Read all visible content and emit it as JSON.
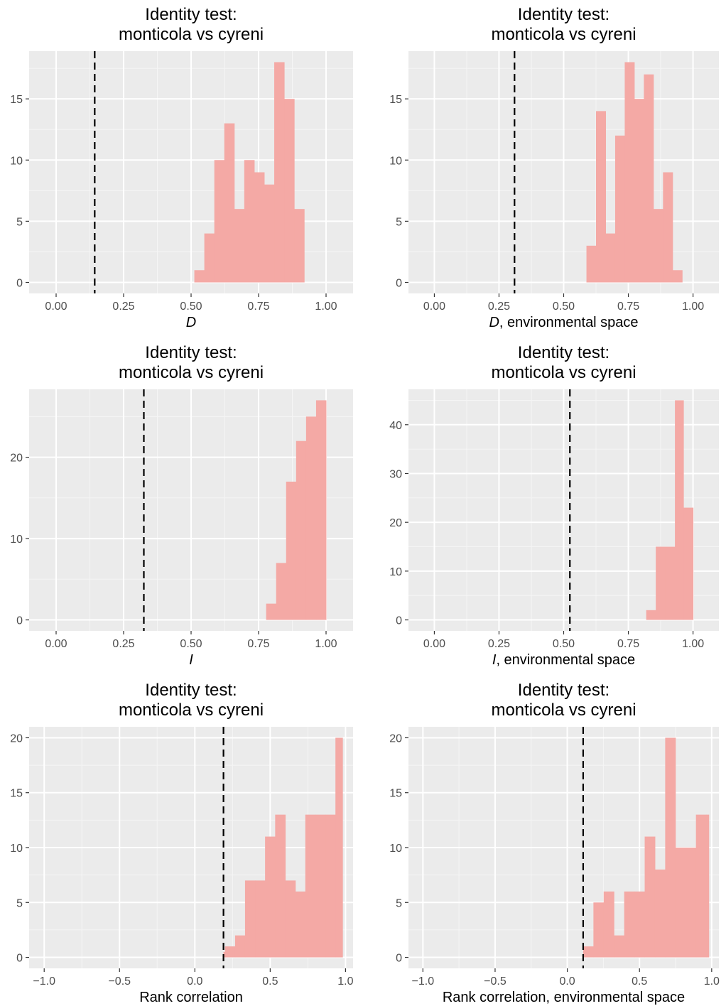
{
  "colors": {
    "panel_background": "#ebebeb",
    "grid_major": "#ffffff",
    "grid_minor": "#f5f5f5",
    "bar_fill": "#f4a9a5",
    "reference_line": "#000000",
    "tick_mark": "#333333"
  },
  "chart_data": [
    {
      "type": "bar",
      "title_lines": [
        "Identity test:",
        "monticola vs cyreni"
      ],
      "xlabel_italic": "D",
      "xlabel_rest": "",
      "ylabel": "",
      "xlim": [
        -0.1,
        1.1
      ],
      "ylim": [
        -0.9,
        18.9
      ],
      "x_ticks": [
        0.0,
        0.25,
        0.5,
        0.75,
        1.0
      ],
      "x_tick_labels": [
        "0.00",
        "0.25",
        "0.50",
        "0.75",
        "1.00"
      ],
      "y_ticks": [
        0,
        5,
        10,
        15
      ],
      "y_tick_labels": [
        "0",
        "5",
        "10",
        "15"
      ],
      "bin_edges": [
        0.512,
        0.549,
        0.586,
        0.623,
        0.66,
        0.697,
        0.734,
        0.771,
        0.808,
        0.845,
        0.882,
        0.919
      ],
      "counts": [
        1,
        4,
        10,
        13,
        6,
        10,
        9,
        8,
        18,
        15,
        6
      ],
      "observed": 0.143,
      "grid": true
    },
    {
      "type": "bar",
      "title_lines": [
        "Identity test:",
        "monticola vs cyreni"
      ],
      "xlabel_italic": "D",
      "xlabel_rest": ", environmental space",
      "ylabel": "",
      "xlim": [
        -0.1,
        1.1
      ],
      "ylim": [
        -0.9,
        18.9
      ],
      "x_ticks": [
        0.0,
        0.25,
        0.5,
        0.75,
        1.0
      ],
      "x_tick_labels": [
        "0.00",
        "0.25",
        "0.50",
        "0.75",
        "1.00"
      ],
      "y_ticks": [
        0,
        5,
        10,
        15
      ],
      "y_tick_labels": [
        "0",
        "5",
        "10",
        "15"
      ],
      "bin_edges": [
        0.588,
        0.625,
        0.662,
        0.699,
        0.736,
        0.773,
        0.81,
        0.847,
        0.884,
        0.921,
        0.958
      ],
      "counts": [
        3,
        14,
        4,
        12,
        18,
        15,
        17,
        6,
        9,
        1
      ],
      "observed": 0.31,
      "grid": true
    },
    {
      "type": "bar",
      "title_lines": [
        "Identity test:",
        "monticola vs cyreni"
      ],
      "xlabel_italic": "I",
      "xlabel_rest": "",
      "ylabel": "",
      "xlim": [
        -0.1,
        1.1
      ],
      "ylim": [
        -1.35,
        28.35
      ],
      "x_ticks": [
        0.0,
        0.25,
        0.5,
        0.75,
        1.0
      ],
      "x_tick_labels": [
        "0.00",
        "0.25",
        "0.50",
        "0.75",
        "1.00"
      ],
      "y_ticks": [
        0,
        10,
        20
      ],
      "y_tick_labels": [
        "0",
        "10",
        "20"
      ],
      "bin_edges": [
        0.778,
        0.815,
        0.852,
        0.889,
        0.926,
        0.963,
        1.0
      ],
      "counts": [
        2,
        7,
        17,
        22,
        25,
        27
      ],
      "observed": 0.325,
      "grid": true
    },
    {
      "type": "bar",
      "title_lines": [
        "Identity test:",
        "monticola vs cyreni"
      ],
      "xlabel_italic": "I",
      "xlabel_rest": ", environmental space",
      "ylabel": "",
      "xlim": [
        -0.1,
        1.1
      ],
      "ylim": [
        -2.25,
        47.25
      ],
      "x_ticks": [
        0.0,
        0.25,
        0.5,
        0.75,
        1.0
      ],
      "x_tick_labels": [
        "0.00",
        "0.25",
        "0.50",
        "0.75",
        "1.00"
      ],
      "y_ticks": [
        0,
        10,
        20,
        30,
        40
      ],
      "y_tick_labels": [
        "0",
        "10",
        "20",
        "30",
        "40"
      ],
      "bin_edges": [
        0.819,
        0.856,
        0.893,
        0.93,
        0.963,
        1.0
      ],
      "counts": [
        2,
        15,
        15,
        45,
        23
      ],
      "observed": 0.524,
      "grid": true
    },
    {
      "type": "bar",
      "title_lines": [
        "Identity test:",
        "monticola vs cyreni"
      ],
      "xlabel_italic": "",
      "xlabel_rest": "Rank correlation",
      "ylabel": "",
      "xlim": [
        -1.1,
        1.05
      ],
      "ylim": [
        -1.0,
        21.0
      ],
      "x_ticks": [
        -1.0,
        -0.5,
        0.0,
        0.5,
        1.0
      ],
      "x_tick_labels": [
        "−1.0",
        "−0.5",
        "0.0",
        "0.5",
        "1.0"
      ],
      "y_ticks": [
        0,
        5,
        10,
        15,
        20
      ],
      "y_tick_labels": [
        "0",
        "5",
        "10",
        "15",
        "20"
      ],
      "bin_edges": [
        0.19,
        0.2,
        0.267,
        0.333,
        0.4,
        0.466,
        0.533,
        0.6,
        0.667,
        0.733,
        0.8,
        0.867,
        0.933,
        0.98
      ],
      "counts": [
        0.5,
        1,
        2,
        7,
        7,
        11,
        13,
        7,
        6,
        13,
        13,
        13,
        20
      ],
      "observed": 0.19,
      "grid": true
    },
    {
      "type": "bar",
      "title_lines": [
        "Identity test:",
        "monticola vs cyreni"
      ],
      "xlabel_italic": "",
      "xlabel_rest": "Rank correlation, environmental space",
      "ylabel": "",
      "xlim": [
        -1.1,
        1.05
      ],
      "ylim": [
        -1.0,
        21.0
      ],
      "x_ticks": [
        -1.0,
        -0.5,
        0.0,
        0.5,
        1.0
      ],
      "x_tick_labels": [
        "−1.0",
        "−0.5",
        "0.0",
        "0.5",
        "1.0"
      ],
      "y_ticks": [
        0,
        5,
        10,
        15,
        20
      ],
      "y_tick_labels": [
        "0",
        "5",
        "10",
        "15",
        "20"
      ],
      "bin_edges": [
        0.11,
        0.181,
        0.252,
        0.323,
        0.394,
        0.465,
        0.536,
        0.607,
        0.678,
        0.749,
        0.82,
        0.891,
        0.962,
        0.98
      ],
      "counts": [
        1,
        5,
        6,
        2,
        6,
        6,
        11,
        8,
        20,
        10,
        10,
        13,
        13
      ],
      "observed": 0.11,
      "grid": true
    }
  ]
}
